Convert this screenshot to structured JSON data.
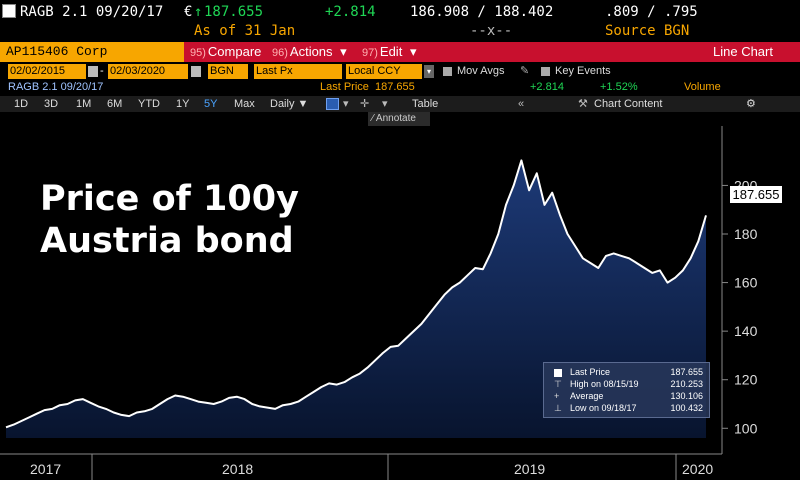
{
  "header": {
    "ticker": "RAGB 2.1 09/20/17",
    "price_prefix": "€",
    "arrow": "↑",
    "price": "187.655",
    "change": "+2.814",
    "bid_ask": "186.908 / 188.402",
    "yields": ".809 / .795",
    "as_of": "As of 31 Jan",
    "size": "--x--",
    "source": "Source BGN"
  },
  "function_bar": {
    "security": "AP115406 Corp",
    "compare_num": "95)",
    "compare": "Compare",
    "actions_num": "96)",
    "actions": "Actions",
    "edit_num": "97)",
    "edit": "Edit",
    "chart_type": "Line Chart",
    "caret": "▾"
  },
  "inputs": {
    "start_date": "02/02/2015",
    "end_date": "02/03/2020",
    "source": "BGN",
    "field": "Last Px",
    "currency": "Local CCY",
    "mov_avgs": "Mov Avgs",
    "key_events": "Key Events"
  },
  "security_line": {
    "name": "RAGB 2.1 09/20/17",
    "last_price_label": "Last Price",
    "last_price": "187.655",
    "change": "+2.814",
    "change_pct": "+1.52%",
    "volume_label": "Volume"
  },
  "toolbar": {
    "periods": [
      "1D",
      "3D",
      "1M",
      "6M",
      "YTD",
      "1Y",
      "5Y",
      "Max"
    ],
    "selected_period": "5Y",
    "frequency": "Daily ▼",
    "table": "Table",
    "chart_content": "Chart Content",
    "annotate": "Annotate",
    "settings_icon": "gear-icon"
  },
  "overlay_title": "Price of 100y\nAustria bond",
  "colors": {
    "background": "#000000",
    "area_top": "#1d3a78",
    "area_bottom": "#08142e",
    "line": "#ffffff",
    "accent_orange": "#f7a600",
    "function_red": "#c8102e",
    "up_green": "#1fd655"
  },
  "chart_data": {
    "type": "area",
    "xlabel": "",
    "ylabel": "",
    "x_ticks": [
      "2017",
      "2018",
      "2019",
      "2020"
    ],
    "y_ticks": [
      100,
      120,
      140,
      160,
      180,
      200
    ],
    "ylim": [
      96,
      222
    ],
    "grid": false,
    "legend_placement": "bottom-right",
    "last_value_label": "187.655",
    "legend": [
      {
        "label": "Last Price",
        "value": "187.655"
      },
      {
        "label": "High on 08/15/19",
        "value": "210.253"
      },
      {
        "label": "Average",
        "value": "130.106"
      },
      {
        "label": "Low on 09/18/17",
        "value": "100.432"
      }
    ],
    "series": [
      {
        "name": "Last Price",
        "x_range": [
          "2017-09-20",
          "2020-01-31"
        ],
        "values": [
          100.4,
          101.5,
          103,
          104.5,
          106,
          107.5,
          108,
          109.5,
          110,
          111.5,
          112,
          110.5,
          109,
          108,
          106.5,
          105.5,
          105,
          106.5,
          107,
          108,
          110,
          112,
          113.5,
          113,
          112,
          111,
          110.5,
          110,
          111,
          112.5,
          113,
          112,
          110,
          109,
          108.5,
          108,
          109.5,
          110,
          111,
          113,
          115,
          117,
          118.5,
          118,
          119,
          121,
          122.5,
          125,
          128,
          131,
          133.5,
          134,
          137,
          140,
          143,
          147,
          151,
          155,
          158,
          160,
          163,
          166,
          165.5,
          172,
          180,
          192,
          200,
          210.3,
          198,
          205,
          192,
          197,
          188,
          180,
          175,
          170,
          168,
          166,
          171,
          172,
          171,
          170,
          168,
          166,
          164,
          165,
          160,
          162,
          165,
          170,
          177,
          187.655
        ]
      }
    ]
  }
}
